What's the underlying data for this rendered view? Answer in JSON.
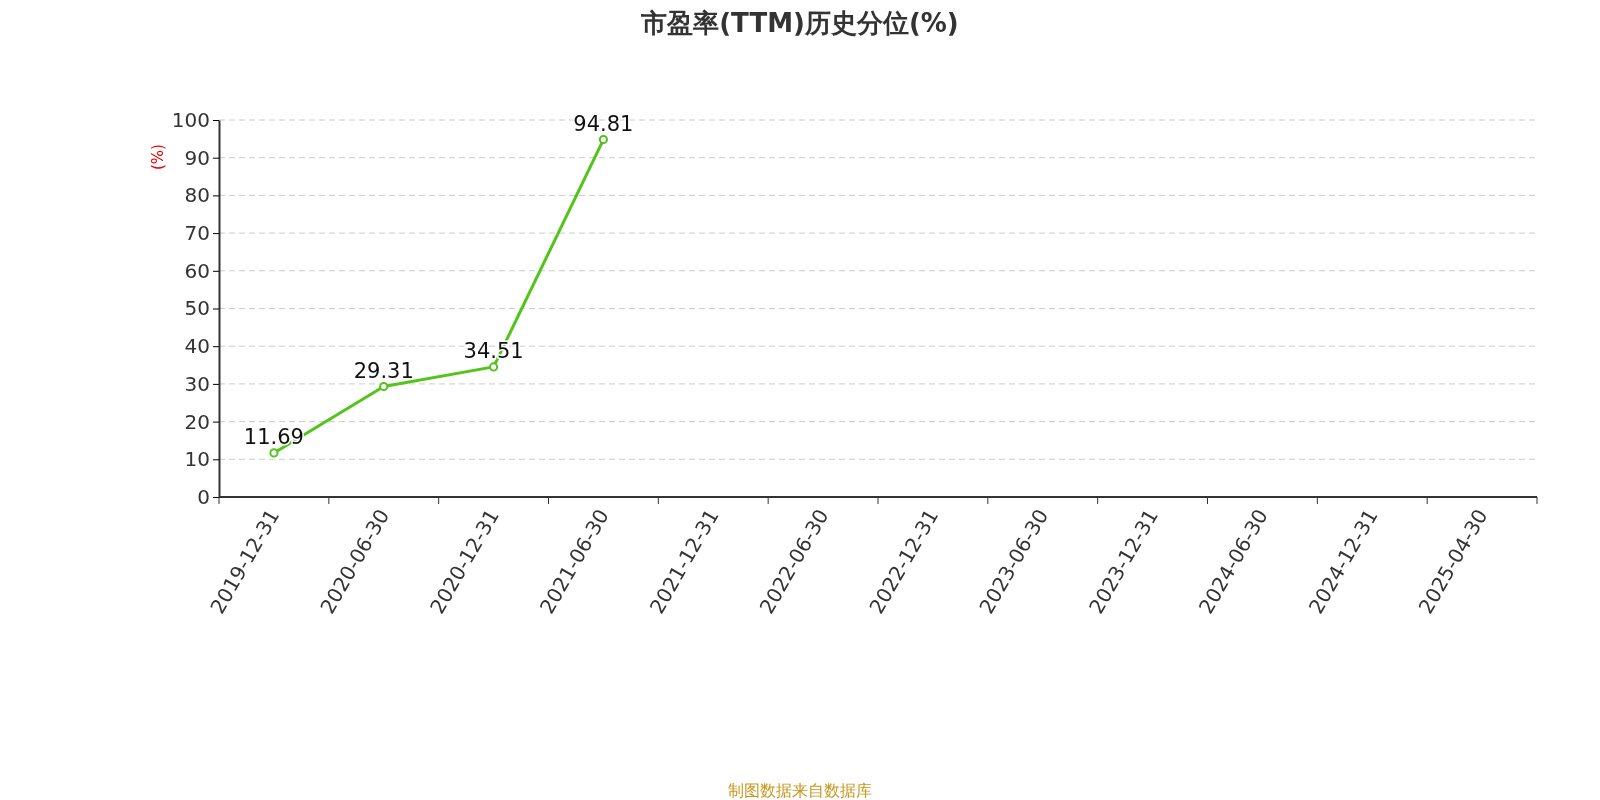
{
  "chart_data": {
    "type": "line",
    "title": "市盈率(TTM)历史分位(%)",
    "ylabel": "(%)",
    "categories": [
      "2019-12-31",
      "2020-06-30",
      "2020-12-31",
      "2021-06-30",
      "2021-12-31",
      "2022-06-30",
      "2022-12-31",
      "2023-06-30",
      "2023-12-31",
      "2024-06-30",
      "2024-12-31",
      "2025-04-30"
    ],
    "series": [
      {
        "color": "#52c41a",
        "values": [
          11.69,
          29.31,
          34.51,
          94.81,
          null,
          null,
          null,
          null,
          null,
          null,
          null,
          null
        ]
      }
    ],
    "ylim": [
      0,
      100
    ],
    "yticks": [
      0,
      10,
      20,
      30,
      40,
      50,
      60,
      70,
      80,
      90,
      100
    ],
    "grid": "y",
    "marker": "circle",
    "line_style": "solid",
    "data_labels": true,
    "annotations": [
      "制图数据来自数据库"
    ]
  }
}
